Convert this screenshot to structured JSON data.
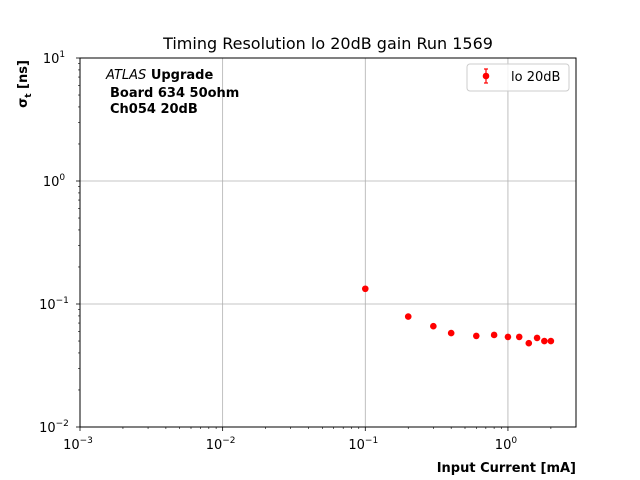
{
  "chart_data": {
    "type": "scatter",
    "title": "Timing Resolution lo 20dB gain Run 1569",
    "xlabel": "Input Current [mA]",
    "ylabel_main": "σ",
    "ylabel_sub": "t",
    "ylabel_unit": " [ns]",
    "xscale": "log",
    "yscale": "log",
    "xlim": [
      0.001,
      3
    ],
    "ylim": [
      0.01,
      10
    ],
    "grid": true,
    "legend_position": "top-right",
    "x_ticks": [
      {
        "value": 0.001,
        "base": "10",
        "exp": "−3"
      },
      {
        "value": 0.01,
        "base": "10",
        "exp": "−2"
      },
      {
        "value": 0.1,
        "base": "10",
        "exp": "−1"
      },
      {
        "value": 1,
        "base": "10",
        "exp": "0"
      }
    ],
    "y_ticks": [
      {
        "value": 0.01,
        "base": "10",
        "exp": "−2"
      },
      {
        "value": 0.1,
        "base": "10",
        "exp": "−1"
      },
      {
        "value": 1,
        "base": "10",
        "exp": "0"
      },
      {
        "value": 10,
        "base": "10",
        "exp": "1"
      }
    ],
    "annotation": {
      "atlas": "ATLAS",
      "upgrade": "Upgrade",
      "line2": "Board 634 50ohm",
      "line3": "Ch054 20dB"
    },
    "series": [
      {
        "name": "lo 20dB",
        "color": "#ff0000",
        "marker": "circle",
        "x": [
          0.1,
          0.2,
          0.3,
          0.4,
          0.6,
          0.8,
          1.0,
          1.2,
          1.4,
          1.6,
          1.8,
          2.0
        ],
        "y": [
          0.133,
          0.079,
          0.066,
          0.058,
          0.055,
          0.056,
          0.054,
          0.054,
          0.048,
          0.053,
          0.05,
          0.05
        ]
      }
    ]
  }
}
